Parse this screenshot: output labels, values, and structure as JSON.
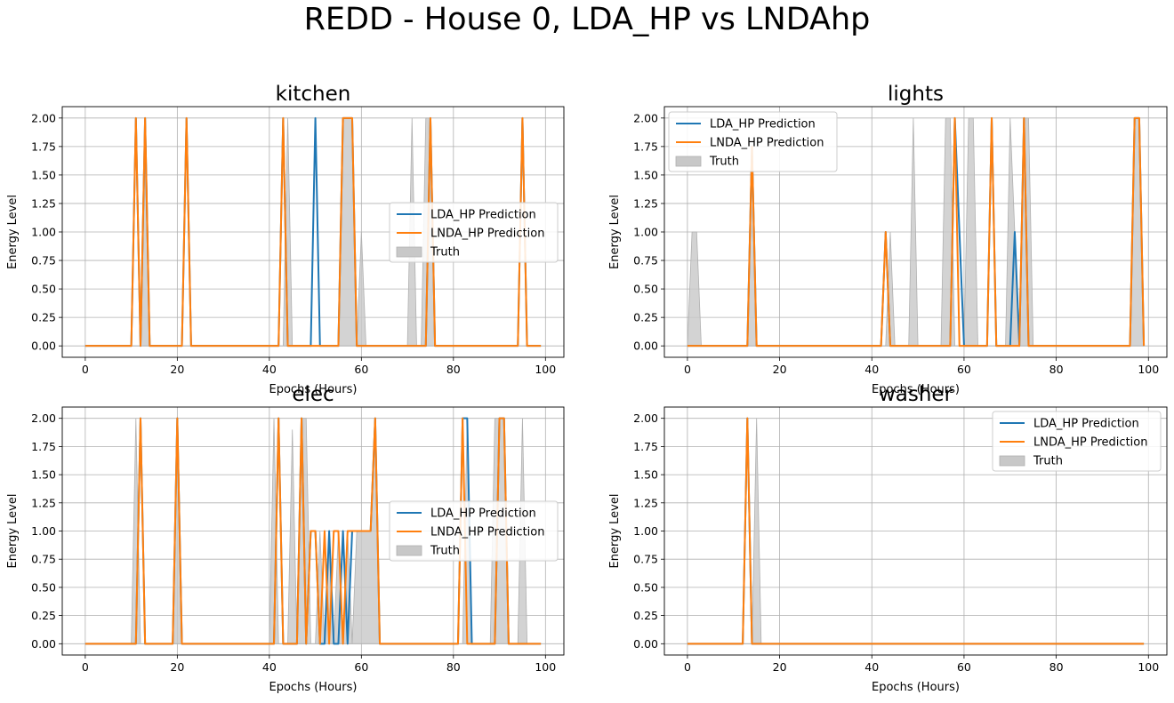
{
  "suptitle": "REDD - House 0, LDA_HP vs LNDAhp",
  "colors": {
    "lda": "#1f77b4",
    "lnda": "#ff7f0e",
    "truth": "#c8c8c8",
    "grid": "#b0b0b0"
  },
  "chart_data": [
    {
      "type": "line",
      "title": "kitchen",
      "xlabel": "Epochs (Hours)",
      "ylabel": "Energy Level",
      "xlim": [
        -5,
        104
      ],
      "ylim": [
        -0.1,
        2.1
      ],
      "xticks": [
        "0",
        "20",
        "40",
        "60",
        "80",
        "100"
      ],
      "yticks": [
        "0.00",
        "0.25",
        "0.50",
        "0.75",
        "1.00",
        "1.25",
        "1.50",
        "1.75",
        "2.00"
      ],
      "grid": true,
      "legend_position": "center-right",
      "legend": [
        "LDA_HP Prediction",
        "LNDA_HP Prediction",
        "Truth"
      ],
      "x_range": [
        0,
        99
      ],
      "lda": [
        [
          11,
          2
        ],
        [
          13,
          2
        ],
        [
          22,
          2
        ],
        [
          43,
          2
        ],
        [
          50,
          2
        ],
        [
          56,
          2
        ],
        [
          57,
          2
        ],
        [
          58,
          2
        ],
        [
          75,
          2
        ],
        [
          95,
          2
        ]
      ],
      "lnda": [
        [
          11,
          2
        ],
        [
          13,
          2
        ],
        [
          22,
          2
        ],
        [
          43,
          2
        ],
        [
          56,
          2
        ],
        [
          57,
          2
        ],
        [
          58,
          2
        ],
        [
          75,
          2
        ],
        [
          95,
          2
        ]
      ],
      "truth": [
        [
          13,
          1.6
        ],
        [
          44,
          2
        ],
        [
          56,
          2
        ],
        [
          57,
          2
        ],
        [
          58,
          2
        ],
        [
          60,
          1
        ],
        [
          71,
          2
        ],
        [
          74,
          2
        ],
        [
          75,
          2
        ]
      ]
    },
    {
      "type": "line",
      "title": "lights",
      "xlabel": "Epochs (Hours)",
      "ylabel": "Energy Level",
      "xlim": [
        -5,
        104
      ],
      "ylim": [
        -0.1,
        2.1
      ],
      "xticks": [
        "0",
        "20",
        "40",
        "60",
        "80",
        "100"
      ],
      "yticks": [
        "0.00",
        "0.25",
        "0.50",
        "0.75",
        "1.00",
        "1.25",
        "1.50",
        "1.75",
        "2.00"
      ],
      "grid": true,
      "legend_position": "top-left",
      "legend": [
        "LDA_HP Prediction",
        "LNDA_HP Prediction",
        "Truth"
      ],
      "x_range": [
        0,
        99
      ],
      "lda": [
        [
          14,
          1.75
        ],
        [
          43,
          1
        ],
        [
          58,
          2
        ],
        [
          59,
          1
        ],
        [
          66,
          2
        ],
        [
          71,
          1
        ],
        [
          73,
          2
        ],
        [
          97,
          2
        ],
        [
          98,
          2
        ]
      ],
      "lnda": [
        [
          14,
          1.75
        ],
        [
          43,
          1
        ],
        [
          58,
          2
        ],
        [
          66,
          2
        ],
        [
          73,
          2
        ],
        [
          97,
          2
        ],
        [
          98,
          2
        ]
      ],
      "truth": [
        [
          1,
          1
        ],
        [
          2,
          1
        ],
        [
          14,
          1.75
        ],
        [
          44,
          1
        ],
        [
          49,
          2
        ],
        [
          56,
          2
        ],
        [
          57,
          2
        ],
        [
          61,
          2
        ],
        [
          62,
          2
        ],
        [
          70,
          2
        ],
        [
          71,
          1
        ],
        [
          73,
          2
        ],
        [
          74,
          2
        ],
        [
          97,
          2
        ],
        [
          98,
          2
        ]
      ]
    },
    {
      "type": "line",
      "title": "elec",
      "xlabel": "Epochs (Hours)",
      "ylabel": "Energy Level",
      "xlim": [
        -5,
        104
      ],
      "ylim": [
        -0.1,
        2.1
      ],
      "xticks": [
        "0",
        "20",
        "40",
        "60",
        "80",
        "100"
      ],
      "yticks": [
        "0.00",
        "0.25",
        "0.50",
        "0.75",
        "1.00",
        "1.25",
        "1.50",
        "1.75",
        "2.00"
      ],
      "grid": true,
      "legend_position": "center-right",
      "legend": [
        "LDA_HP Prediction",
        "LNDA_HP Prediction",
        "Truth"
      ],
      "x_range": [
        0,
        99
      ],
      "lda": [
        [
          12,
          2
        ],
        [
          20,
          2
        ],
        [
          42,
          2
        ],
        [
          47,
          2
        ],
        [
          49,
          1
        ],
        [
          50,
          1
        ],
        [
          53,
          1
        ],
        [
          56,
          1
        ],
        [
          58,
          1
        ],
        [
          59,
          1
        ],
        [
          60,
          1
        ],
        [
          61,
          1
        ],
        [
          62,
          1
        ],
        [
          63,
          2
        ],
        [
          82,
          2
        ],
        [
          83,
          2
        ],
        [
          90,
          2
        ],
        [
          91,
          2
        ]
      ],
      "lnda": [
        [
          12,
          2
        ],
        [
          20,
          2
        ],
        [
          42,
          2
        ],
        [
          47,
          2
        ],
        [
          49,
          1
        ],
        [
          50,
          1
        ],
        [
          52,
          1
        ],
        [
          54,
          1
        ],
        [
          55,
          1
        ],
        [
          57,
          1
        ],
        [
          58,
          1
        ],
        [
          59,
          1
        ],
        [
          60,
          1
        ],
        [
          61,
          1
        ],
        [
          62,
          1
        ],
        [
          63,
          2
        ],
        [
          82,
          2
        ],
        [
          90,
          2
        ],
        [
          91,
          2
        ]
      ],
      "truth": [
        [
          11,
          2
        ],
        [
          20,
          2
        ],
        [
          41,
          2
        ],
        [
          45,
          1.9
        ],
        [
          47,
          2
        ],
        [
          48,
          2
        ],
        [
          51,
          1
        ],
        [
          53,
          1
        ],
        [
          55,
          1
        ],
        [
          57,
          1
        ],
        [
          59,
          1
        ],
        [
          60,
          1
        ],
        [
          61,
          1
        ],
        [
          62,
          1
        ],
        [
          63,
          2
        ],
        [
          83,
          2
        ],
        [
          89,
          2
        ],
        [
          90,
          2
        ],
        [
          91,
          2
        ],
        [
          95,
          2
        ]
      ]
    },
    {
      "type": "line",
      "title": "washer",
      "xlabel": "Epochs (Hours)",
      "ylabel": "Energy Level",
      "xlim": [
        -5,
        104
      ],
      "ylim": [
        -0.1,
        2.1
      ],
      "xticks": [
        "0",
        "20",
        "40",
        "60",
        "80",
        "100"
      ],
      "yticks": [
        "0.00",
        "0.25",
        "0.50",
        "0.75",
        "1.00",
        "1.25",
        "1.50",
        "1.75",
        "2.00"
      ],
      "grid": true,
      "legend_position": "top-right",
      "legend": [
        "LDA_HP Prediction",
        "LNDA_HP Prediction",
        "Truth"
      ],
      "x_range": [
        0,
        99
      ],
      "lda": [
        [
          13,
          2
        ]
      ],
      "lnda": [
        [
          13,
          2
        ]
      ],
      "truth": [
        [
          15,
          2
        ]
      ]
    }
  ]
}
